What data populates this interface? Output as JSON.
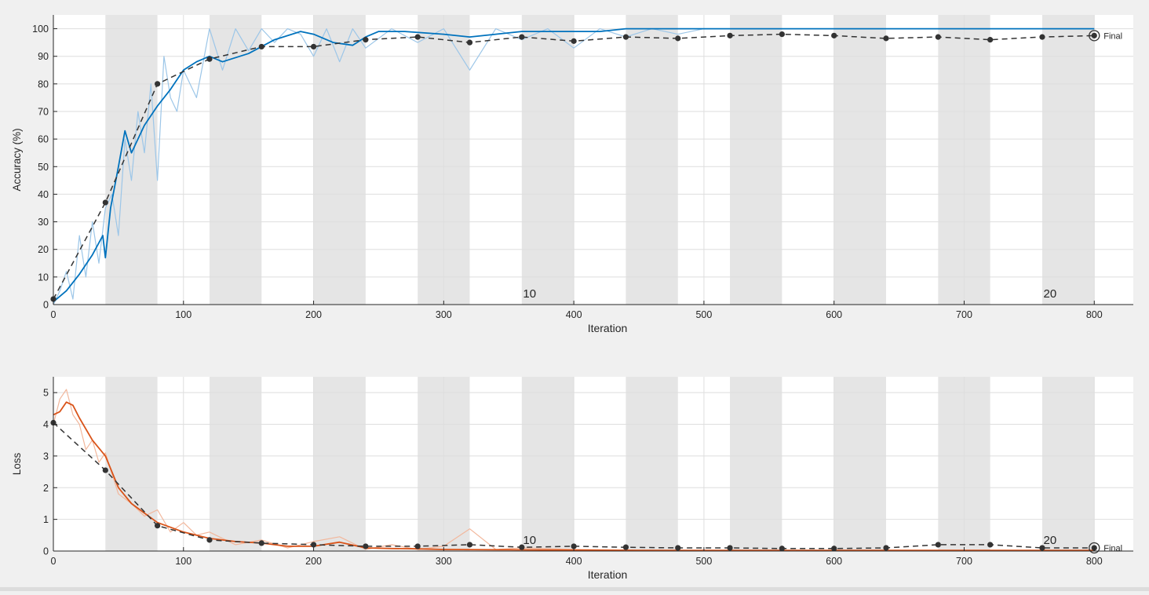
{
  "panels": [
    {
      "id": "accuracy",
      "ylabel": "Accuracy (%)",
      "xlabel": "Iteration",
      "ylim": [
        0,
        105
      ],
      "yticks": [
        0,
        10,
        20,
        30,
        40,
        50,
        60,
        70,
        80,
        90,
        100
      ],
      "final_label": "Final",
      "epoch_labels": [
        {
          "x": 366,
          "text": "10"
        },
        {
          "x": 766,
          "text": "20"
        }
      ]
    },
    {
      "id": "loss",
      "ylabel": "Loss",
      "xlabel": "Iteration",
      "ylim": [
        0,
        5.5
      ],
      "yticks": [
        0,
        1,
        2,
        3,
        4,
        5
      ],
      "final_label": "Final",
      "epoch_labels": [
        {
          "x": 366,
          "text": "10"
        },
        {
          "x": 766,
          "text": "20"
        }
      ]
    }
  ],
  "chart_data": [
    {
      "type": "line",
      "panel": "accuracy",
      "xlim": [
        0,
        830
      ],
      "xticks": [
        0,
        100,
        200,
        300,
        400,
        500,
        600,
        700,
        800
      ],
      "ylim": [
        0,
        105
      ],
      "xlabel": "Iteration",
      "ylabel": "Accuracy (%)",
      "epoch_bands": [
        [
          40,
          80
        ],
        [
          120,
          160
        ],
        [
          200,
          240
        ],
        [
          280,
          320
        ],
        [
          360,
          400
        ],
        [
          440,
          480
        ],
        [
          520,
          560
        ],
        [
          600,
          640
        ],
        [
          680,
          720
        ],
        [
          760,
          800
        ]
      ],
      "series": [
        {
          "role": "smoothed",
          "color": "#0072bd",
          "x": [
            0,
            10,
            20,
            30,
            38,
            40,
            44,
            50,
            55,
            60,
            70,
            80,
            90,
            100,
            110,
            120,
            130,
            150,
            170,
            190,
            200,
            215,
            230,
            240,
            250,
            270,
            300,
            320,
            340,
            360,
            380,
            400,
            420,
            440,
            460,
            500,
            550,
            600,
            650,
            700,
            750,
            800
          ],
          "y": [
            1,
            5,
            11,
            18,
            25,
            17,
            35,
            50,
            63,
            55,
            65,
            72,
            78,
            85,
            88,
            90,
            88,
            91,
            96,
            99,
            98,
            95,
            94,
            97,
            99,
            99,
            98,
            97,
            98,
            99,
            99,
            99,
            99,
            100,
            100,
            100,
            100,
            100,
            100,
            100,
            100,
            100
          ]
        },
        {
          "role": "raw",
          "color": "#9cc6e8",
          "x": [
            0,
            5,
            10,
            15,
            20,
            25,
            30,
            35,
            40,
            45,
            50,
            55,
            60,
            65,
            70,
            75,
            80,
            85,
            90,
            95,
            100,
            110,
            120,
            130,
            140,
            150,
            160,
            170,
            180,
            190,
            200,
            210,
            220,
            230,
            240,
            260,
            280,
            300,
            320,
            340,
            360,
            380,
            400,
            420,
            440,
            460,
            480,
            500,
            550,
            600,
            650,
            700,
            750,
            800
          ],
          "y": [
            0,
            5,
            12,
            2,
            25,
            10,
            30,
            15,
            35,
            40,
            25,
            60,
            45,
            70,
            55,
            80,
            45,
            90,
            75,
            70,
            85,
            75,
            100,
            85,
            100,
            92,
            100,
            95,
            100,
            98,
            90,
            100,
            88,
            100,
            93,
            100,
            95,
            100,
            85,
            100,
            96,
            100,
            93,
            100,
            97,
            100,
            98,
            100,
            100,
            100,
            100,
            100,
            100,
            100
          ]
        },
        {
          "role": "validation",
          "color": "#333333",
          "x": [
            0,
            40,
            80,
            120,
            160,
            200,
            240,
            280,
            320,
            360,
            400,
            440,
            480,
            520,
            560,
            600,
            640,
            680,
            720,
            760,
            800
          ],
          "y": [
            2,
            37,
            80,
            89,
            93.5,
            93.5,
            96,
            97,
            95,
            97,
            95.5,
            97,
            96.5,
            97.5,
            98,
            97.5,
            96.5,
            97,
            96,
            97,
            97.5
          ]
        }
      ]
    },
    {
      "type": "line",
      "panel": "loss",
      "xlim": [
        0,
        830
      ],
      "xticks": [
        0,
        100,
        200,
        300,
        400,
        500,
        600,
        700,
        800
      ],
      "ylim": [
        0,
        5.5
      ],
      "xlabel": "Iteration",
      "ylabel": "Loss",
      "epoch_bands": [
        [
          40,
          80
        ],
        [
          120,
          160
        ],
        [
          200,
          240
        ],
        [
          280,
          320
        ],
        [
          360,
          400
        ],
        [
          440,
          480
        ],
        [
          520,
          560
        ],
        [
          600,
          640
        ],
        [
          680,
          720
        ],
        [
          760,
          800
        ]
      ],
      "series": [
        {
          "role": "smoothed",
          "color": "#d95319",
          "x": [
            0,
            5,
            10,
            15,
            20,
            30,
            40,
            45,
            50,
            60,
            70,
            80,
            90,
            100,
            120,
            140,
            160,
            180,
            200,
            220,
            240,
            260,
            280,
            300,
            350,
            400,
            450,
            500,
            600,
            700,
            800
          ],
          "y": [
            4.3,
            4.4,
            4.7,
            4.6,
            4.2,
            3.5,
            3.0,
            2.5,
            2.0,
            1.5,
            1.2,
            0.9,
            0.75,
            0.6,
            0.4,
            0.3,
            0.25,
            0.15,
            0.15,
            0.28,
            0.1,
            0.08,
            0.07,
            0.05,
            0.04,
            0.03,
            0.02,
            0.02,
            0.02,
            0.02,
            0.02
          ]
        },
        {
          "role": "raw",
          "color": "#f2b79c",
          "x": [
            0,
            5,
            10,
            15,
            20,
            25,
            30,
            35,
            40,
            50,
            60,
            70,
            80,
            90,
            100,
            110,
            120,
            140,
            160,
            180,
            200,
            220,
            240,
            260,
            280,
            300,
            320,
            340,
            360,
            400,
            450,
            500,
            600,
            700,
            800
          ],
          "y": [
            4.0,
            4.8,
            5.1,
            4.3,
            4.0,
            3.2,
            3.5,
            2.8,
            3.1,
            1.8,
            1.5,
            1.1,
            1.3,
            0.6,
            0.9,
            0.5,
            0.6,
            0.2,
            0.35,
            0.1,
            0.3,
            0.45,
            0.05,
            0.2,
            0.05,
            0.15,
            0.7,
            0.05,
            0.1,
            0.05,
            0.03,
            0.02,
            0.02,
            0.02,
            0.02
          ]
        },
        {
          "role": "validation",
          "color": "#333333",
          "x": [
            0,
            40,
            80,
            120,
            160,
            200,
            240,
            280,
            320,
            360,
            400,
            440,
            480,
            520,
            560,
            600,
            640,
            680,
            720,
            760,
            800
          ],
          "y": [
            4.05,
            2.55,
            0.8,
            0.35,
            0.25,
            0.2,
            0.15,
            0.15,
            0.2,
            0.12,
            0.15,
            0.12,
            0.1,
            0.1,
            0.08,
            0.08,
            0.1,
            0.2,
            0.2,
            0.1,
            0.1
          ]
        }
      ]
    }
  ]
}
